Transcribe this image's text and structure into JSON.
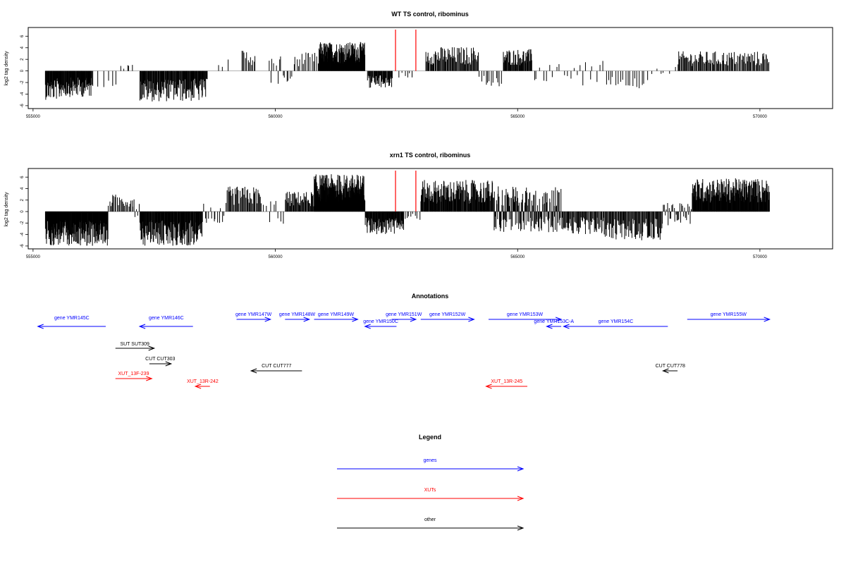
{
  "chart_data": [
    {
      "type": "bar",
      "title": "WT TS control, ribominus",
      "ylabel": "log2 tag density",
      "xlim": [
        554900,
        571500
      ],
      "ylim": [
        -6.5,
        7.5
      ],
      "xticks": [
        555000,
        560000,
        565000,
        570000
      ],
      "xtick_labels": [
        "555000",
        "560000",
        "565000",
        "570000"
      ],
      "yticks": [
        -6,
        -4,
        -2,
        0,
        2,
        4,
        6
      ],
      "ytick_labels": [
        "-6",
        "-4",
        "-2",
        "0",
        "2",
        "4",
        "6"
      ],
      "grid": false,
      "data_color": "#000000",
      "marker_color": "#ff0000",
      "marker_lines": [
        562480,
        562900
      ],
      "segments": [
        {
          "start": 555250,
          "end": 555580,
          "min": -5.0,
          "max": 0,
          "count": 40
        },
        {
          "start": 555580,
          "end": 556220,
          "min": -4.5,
          "max": 0,
          "count": 70
        },
        {
          "start": 556220,
          "end": 556780,
          "min": -2.8,
          "max": 0,
          "count": 6
        },
        {
          "start": 556780,
          "end": 557100,
          "min": 0,
          "max": 1.2,
          "count": 5
        },
        {
          "start": 557200,
          "end": 558600,
          "min": -5.3,
          "max": 0,
          "count": 130
        },
        {
          "start": 558800,
          "end": 559100,
          "min": 0,
          "max": 2.0,
          "count": 3
        },
        {
          "start": 559300,
          "end": 559600,
          "min": 0,
          "max": 3.8,
          "count": 12
        },
        {
          "start": 559850,
          "end": 560400,
          "min": -2.4,
          "max": 2.5,
          "count": 15
        },
        {
          "start": 560400,
          "end": 560900,
          "min": 0,
          "max": 3.2,
          "count": 16
        },
        {
          "start": 560900,
          "end": 561850,
          "min": 0,
          "max": 5.0,
          "count": 160
        },
        {
          "start": 561900,
          "end": 562420,
          "min": -3.0,
          "max": 0,
          "count": 45
        },
        {
          "start": 562550,
          "end": 562850,
          "min": -1.2,
          "max": 0,
          "count": 6
        },
        {
          "start": 563100,
          "end": 564200,
          "min": 0,
          "max": 4.2,
          "count": 75
        },
        {
          "start": 564200,
          "end": 564700,
          "min": -2.8,
          "max": 0,
          "count": 12
        },
        {
          "start": 564700,
          "end": 565300,
          "min": 0,
          "max": 3.8,
          "count": 55
        },
        {
          "start": 565300,
          "end": 566800,
          "min": -2.5,
          "max": 2.0,
          "count": 22
        },
        {
          "start": 566800,
          "end": 567700,
          "min": -3.0,
          "max": 0,
          "count": 18
        },
        {
          "start": 567700,
          "end": 568300,
          "min": -1.2,
          "max": 0.8,
          "count": 6
        },
        {
          "start": 568300,
          "end": 570200,
          "min": 0,
          "max": 3.4,
          "count": 110
        }
      ]
    },
    {
      "type": "bar",
      "title": "xrn1 TS control, ribominus",
      "ylabel": "log2 tag density",
      "xlim": [
        554900,
        571500
      ],
      "ylim": [
        -6.5,
        7.5
      ],
      "xticks": [
        555000,
        560000,
        565000,
        570000
      ],
      "xtick_labels": [
        "555000",
        "560000",
        "565000",
        "570000"
      ],
      "yticks": [
        -6,
        -4,
        -2,
        0,
        2,
        4,
        6
      ],
      "ytick_labels": [
        "-6",
        "-4",
        "-2",
        "0",
        "2",
        "4",
        "6"
      ],
      "grid": false,
      "data_color": "#000000",
      "marker_color": "#ff0000",
      "marker_lines": [
        562480,
        562900
      ],
      "segments": [
        {
          "start": 555250,
          "end": 556550,
          "min": -6.0,
          "max": 0,
          "count": 190
        },
        {
          "start": 556550,
          "end": 557100,
          "min": 0,
          "max": 3.0,
          "count": 25
        },
        {
          "start": 557100,
          "end": 557200,
          "min": -1.0,
          "max": 2.0,
          "count": 4
        },
        {
          "start": 557200,
          "end": 558500,
          "min": -6.0,
          "max": 0,
          "count": 150
        },
        {
          "start": 558500,
          "end": 559000,
          "min": -2.0,
          "max": 1.5,
          "count": 14
        },
        {
          "start": 559000,
          "end": 559700,
          "min": 0,
          "max": 4.4,
          "count": 40
        },
        {
          "start": 559700,
          "end": 560200,
          "min": -2.5,
          "max": 2.0,
          "count": 10
        },
        {
          "start": 560200,
          "end": 560800,
          "min": 0,
          "max": 3.5,
          "count": 45
        },
        {
          "start": 560800,
          "end": 561850,
          "min": 0,
          "max": 6.5,
          "count": 200
        },
        {
          "start": 561850,
          "end": 562650,
          "min": -4.0,
          "max": 0,
          "count": 90
        },
        {
          "start": 562650,
          "end": 563000,
          "min": -1.5,
          "max": 0,
          "count": 8
        },
        {
          "start": 563000,
          "end": 564500,
          "min": 0,
          "max": 5.5,
          "count": 150
        },
        {
          "start": 564500,
          "end": 565900,
          "min": -3.6,
          "max": 4.4,
          "count": 140
        },
        {
          "start": 565900,
          "end": 566800,
          "min": -4.0,
          "max": 0,
          "count": 60
        },
        {
          "start": 566800,
          "end": 568000,
          "min": -5.0,
          "max": 0,
          "count": 80
        },
        {
          "start": 568000,
          "end": 568600,
          "min": -2.5,
          "max": 1.5,
          "count": 30
        },
        {
          "start": 568600,
          "end": 570200,
          "min": 0,
          "max": 5.8,
          "count": 200
        }
      ]
    }
  ],
  "annotations": {
    "title": "Annotations",
    "items": [
      {
        "label": "gene YMR145C",
        "color": "#0000ff",
        "start": 555100,
        "end": 556500,
        "dir": "left"
      },
      {
        "label": "gene YMR146C",
        "color": "#0000ff",
        "start": 557200,
        "end": 558300,
        "dir": "left"
      },
      {
        "label": "gene YMR147W",
        "color": "#0000ff",
        "start": 559200,
        "end": 559900,
        "dir": "right"
      },
      {
        "label": "gene YMR148W",
        "color": "#0000ff",
        "start": 560200,
        "end": 560700,
        "dir": "right"
      },
      {
        "label": "gene YMR149W",
        "color": "#0000ff",
        "start": 560800,
        "end": 561700,
        "dir": "right"
      },
      {
        "label": "gene YMR150C",
        "color": "#0000ff",
        "start": 561850,
        "end": 562500,
        "dir": "left"
      },
      {
        "label": "gene YMR151W",
        "color": "#0000ff",
        "start": 562400,
        "end": 562900,
        "dir": "right"
      },
      {
        "label": "gene YMR152W",
        "color": "#0000ff",
        "start": 563000,
        "end": 564100,
        "dir": "right"
      },
      {
        "label": "gene YMR153W",
        "color": "#0000ff",
        "start": 564400,
        "end": 565900,
        "dir": "right"
      },
      {
        "label": "gene YMR153C-A",
        "color": "#0000ff",
        "start": 565600,
        "end": 565900,
        "dir": "left"
      },
      {
        "label": "gene YMR154C",
        "color": "#0000ff",
        "start": 565950,
        "end": 568100,
        "dir": "left"
      },
      {
        "label": "gene YMR155W",
        "color": "#0000ff",
        "start": 568500,
        "end": 570200,
        "dir": "right"
      },
      {
        "label": "SUT SUT309",
        "color": "#000000",
        "start": 556700,
        "end": 557500,
        "dir": "right"
      },
      {
        "label": "CUT CUT303",
        "color": "#000000",
        "start": 557400,
        "end": 557850,
        "dir": "right"
      },
      {
        "label": "XUT_13F-239",
        "color": "#ff0000",
        "start": 556700,
        "end": 557450,
        "dir": "right"
      },
      {
        "label": "XUT_13R-242",
        "color": "#ff0000",
        "start": 558350,
        "end": 558650,
        "dir": "left"
      },
      {
        "label": "CUT CUT777",
        "color": "#000000",
        "start": 559500,
        "end": 560550,
        "dir": "left"
      },
      {
        "label": "XUT_13R-245",
        "color": "#ff0000",
        "start": 564350,
        "end": 565200,
        "dir": "left"
      },
      {
        "label": "CUT CUT778",
        "color": "#000000",
        "start": 568000,
        "end": 568300,
        "dir": "left"
      }
    ]
  },
  "legend": {
    "title": "Legend",
    "entries": [
      {
        "label": "genes",
        "color": "#0000ff"
      },
      {
        "label": "XUTs",
        "color": "#ff0000"
      },
      {
        "label": "other",
        "color": "#000000"
      }
    ]
  }
}
